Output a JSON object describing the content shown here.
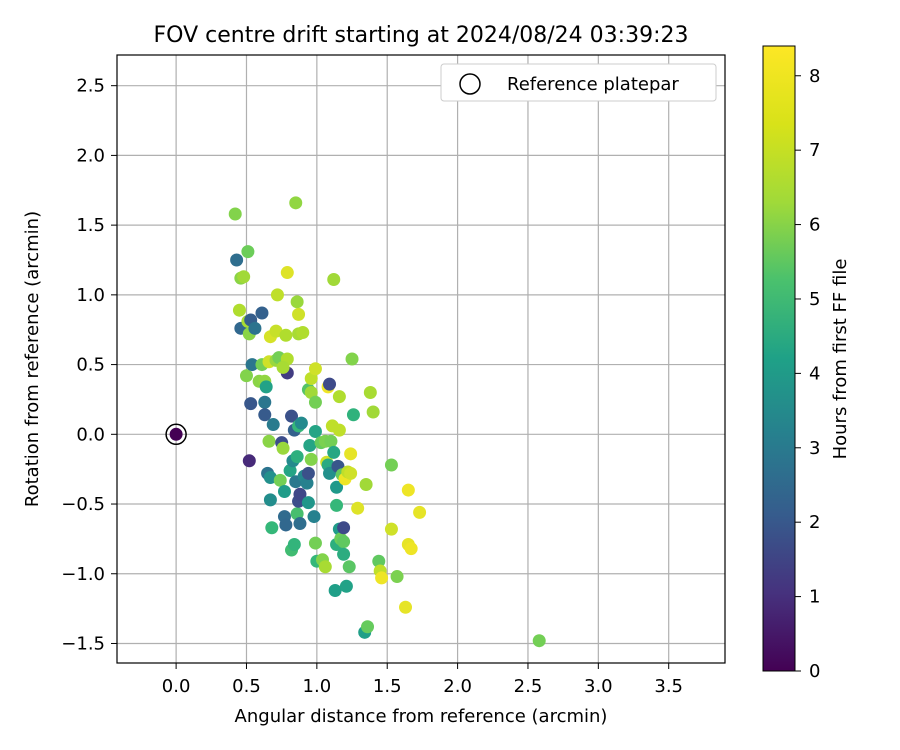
{
  "chart_data": {
    "type": "scatter",
    "title": "FOV centre drift starting at 2024/08/24 03:39:23",
    "xlabel": "Angular distance from reference (arcmin)",
    "ylabel": "Rotation from reference (arcmin)",
    "xlim": [
      -0.42,
      3.9
    ],
    "ylim": [
      -1.64,
      2.72
    ],
    "xticks": [
      "0.0",
      "0.5",
      "1.0",
      "1.5",
      "2.0",
      "2.5",
      "3.0",
      "3.5"
    ],
    "yticks": [
      "-1.5",
      "-1.0",
      "-0.5",
      "0.0",
      "0.5",
      "1.0",
      "1.5",
      "2.0",
      "2.5"
    ],
    "grid": true,
    "legend": {
      "placement": "top-right",
      "entries": [
        "Reference platepar"
      ]
    },
    "colorbar": {
      "label": "Hours from first FF file",
      "range": [
        0,
        8.4
      ],
      "ticks": [
        "0",
        "1",
        "2",
        "3",
        "4",
        "5",
        "6",
        "7",
        "8"
      ],
      "colormap": "viridis"
    },
    "reference_point": {
      "x": 0.0,
      "y": 0.0,
      "hours": 0
    },
    "points": [
      {
        "x": 0.42,
        "y": 1.58,
        "h": 6.8
      },
      {
        "x": 0.45,
        "y": 0.89,
        "h": 7.4
      },
      {
        "x": 0.46,
        "y": 1.12,
        "h": 6.9
      },
      {
        "x": 0.48,
        "y": 1.13,
        "h": 7.2
      },
      {
        "x": 0.51,
        "y": 1.31,
        "h": 6.5
      },
      {
        "x": 0.43,
        "y": 1.25,
        "h": 3.0
      },
      {
        "x": 0.46,
        "y": 0.76,
        "h": 2.8
      },
      {
        "x": 0.51,
        "y": 0.81,
        "h": 7.3
      },
      {
        "x": 0.53,
        "y": 0.82,
        "h": 2.5
      },
      {
        "x": 0.52,
        "y": 0.72,
        "h": 6.9
      },
      {
        "x": 0.61,
        "y": 0.87,
        "h": 2.6
      },
      {
        "x": 0.56,
        "y": 0.76,
        "h": 3.2
      },
      {
        "x": 0.5,
        "y": 0.42,
        "h": 6.8
      },
      {
        "x": 0.54,
        "y": 0.5,
        "h": 3.3
      },
      {
        "x": 0.53,
        "y": 0.22,
        "h": 2.3
      },
      {
        "x": 0.59,
        "y": 0.38,
        "h": 6.9
      },
      {
        "x": 0.61,
        "y": 0.5,
        "h": 6.6
      },
      {
        "x": 0.63,
        "y": 0.38,
        "h": 7.0
      },
      {
        "x": 0.64,
        "y": 0.34,
        "h": 4.8
      },
      {
        "x": 0.63,
        "y": 0.23,
        "h": 3.3
      },
      {
        "x": 0.63,
        "y": 0.14,
        "h": 2.4
      },
      {
        "x": 0.66,
        "y": 0.52,
        "h": 7.8
      },
      {
        "x": 0.67,
        "y": 0.7,
        "h": 7.9
      },
      {
        "x": 0.71,
        "y": 0.53,
        "h": 7.1
      },
      {
        "x": 0.71,
        "y": 0.74,
        "h": 7.7
      },
      {
        "x": 0.72,
        "y": 1.0,
        "h": 7.6
      },
      {
        "x": 0.73,
        "y": 0.55,
        "h": 6.6
      },
      {
        "x": 0.79,
        "y": 1.16,
        "h": 8.0
      },
      {
        "x": 0.78,
        "y": 0.71,
        "h": 7.4
      },
      {
        "x": 0.79,
        "y": 0.54,
        "h": 7.4
      },
      {
        "x": 0.79,
        "y": 0.44,
        "h": 1.5
      },
      {
        "x": 0.76,
        "y": 0.48,
        "h": 7.3
      },
      {
        "x": 0.86,
        "y": 0.95,
        "h": 7.1
      },
      {
        "x": 0.87,
        "y": 0.86,
        "h": 7.8
      },
      {
        "x": 0.87,
        "y": 0.72,
        "h": 7.3
      },
      {
        "x": 0.9,
        "y": 0.73,
        "h": 7.4
      },
      {
        "x": 0.85,
        "y": 1.66,
        "h": 7.0
      },
      {
        "x": 1.12,
        "y": 1.11,
        "h": 7.2
      },
      {
        "x": 0.52,
        "y": -0.19,
        "h": 1.0
      },
      {
        "x": 0.66,
        "y": -0.05,
        "h": 6.9
      },
      {
        "x": 0.69,
        "y": 0.07,
        "h": 3.5
      },
      {
        "x": 0.65,
        "y": -0.28,
        "h": 3.2
      },
      {
        "x": 0.67,
        "y": -0.31,
        "h": 4.2
      },
      {
        "x": 0.67,
        "y": -0.47,
        "h": 4.1
      },
      {
        "x": 0.68,
        "y": -0.67,
        "h": 5.6
      },
      {
        "x": 0.74,
        "y": -0.33,
        "h": 6.6
      },
      {
        "x": 0.75,
        "y": -0.06,
        "h": 2.0
      },
      {
        "x": 0.76,
        "y": -0.1,
        "h": 7.1
      },
      {
        "x": 0.77,
        "y": -0.41,
        "h": 4.6
      },
      {
        "x": 0.77,
        "y": -0.59,
        "h": 2.9
      },
      {
        "x": 0.78,
        "y": -0.65,
        "h": 2.8
      },
      {
        "x": 0.81,
        "y": -0.26,
        "h": 4.9
      },
      {
        "x": 0.82,
        "y": -0.83,
        "h": 5.8
      },
      {
        "x": 0.82,
        "y": 0.13,
        "h": 2.1
      },
      {
        "x": 0.83,
        "y": -0.19,
        "h": 4.0
      },
      {
        "x": 0.84,
        "y": -0.79,
        "h": 5.5
      },
      {
        "x": 0.84,
        "y": 0.03,
        "h": 2.6
      },
      {
        "x": 0.85,
        "y": -0.34,
        "h": 3.4
      },
      {
        "x": 0.86,
        "y": -0.16,
        "h": 5.3
      },
      {
        "x": 0.86,
        "y": -0.57,
        "h": 5.9
      },
      {
        "x": 0.87,
        "y": -0.48,
        "h": 2.0
      },
      {
        "x": 0.87,
        "y": 0.06,
        "h": 5.6
      },
      {
        "x": 0.88,
        "y": -0.64,
        "h": 3.0
      },
      {
        "x": 0.88,
        "y": -0.43,
        "h": 1.8
      },
      {
        "x": 0.89,
        "y": 0.08,
        "h": 4.0
      },
      {
        "x": 0.91,
        "y": -0.3,
        "h": 3.9
      },
      {
        "x": 0.93,
        "y": -0.35,
        "h": 3.7
      },
      {
        "x": 0.94,
        "y": -0.49,
        "h": 4.4
      },
      {
        "x": 0.94,
        "y": -0.28,
        "h": 2.1
      },
      {
        "x": 0.94,
        "y": 0.32,
        "h": 6.1
      },
      {
        "x": 0.95,
        "y": -0.08,
        "h": 4.9
      },
      {
        "x": 0.96,
        "y": -0.18,
        "h": 6.8
      },
      {
        "x": 0.96,
        "y": 0.3,
        "h": 7.2
      },
      {
        "x": 0.98,
        "y": -0.59,
        "h": 3.7
      },
      {
        "x": 0.99,
        "y": 0.23,
        "h": 6.6
      },
      {
        "x": 0.99,
        "y": 0.02,
        "h": 4.9
      },
      {
        "x": 0.99,
        "y": -0.78,
        "h": 6.6
      },
      {
        "x": 1.0,
        "y": -0.91,
        "h": 5.6
      },
      {
        "x": 0.96,
        "y": 0.4,
        "h": 7.6
      },
      {
        "x": 0.99,
        "y": 0.47,
        "h": 7.8
      },
      {
        "x": 1.03,
        "y": -0.06,
        "h": 6.4
      },
      {
        "x": 1.04,
        "y": -0.9,
        "h": 6.8
      },
      {
        "x": 1.06,
        "y": -0.95,
        "h": 7.3
      },
      {
        "x": 1.06,
        "y": -0.05,
        "h": 6.7
      },
      {
        "x": 1.07,
        "y": -0.2,
        "h": 7.8
      },
      {
        "x": 1.08,
        "y": -0.22,
        "h": 5.1
      },
      {
        "x": 1.08,
        "y": 0.34,
        "h": 8.2
      },
      {
        "x": 1.09,
        "y": -0.28,
        "h": 4.2
      },
      {
        "x": 1.09,
        "y": 0.36,
        "h": 1.9
      },
      {
        "x": 1.1,
        "y": -0.05,
        "h": 6.6
      },
      {
        "x": 1.11,
        "y": 0.06,
        "h": 7.6
      },
      {
        "x": 1.12,
        "y": -0.13,
        "h": 5.0
      },
      {
        "x": 1.13,
        "y": -1.12,
        "h": 4.7
      },
      {
        "x": 1.14,
        "y": -0.38,
        "h": 4.5
      },
      {
        "x": 1.14,
        "y": -0.51,
        "h": 5.6
      },
      {
        "x": 1.14,
        "y": -0.79,
        "h": 5.3
      },
      {
        "x": 1.15,
        "y": -0.23,
        "h": 2.3
      },
      {
        "x": 1.16,
        "y": 0.03,
        "h": 7.6
      },
      {
        "x": 1.16,
        "y": -0.68,
        "h": 4.6
      },
      {
        "x": 1.16,
        "y": 0.27,
        "h": 7.4
      },
      {
        "x": 1.17,
        "y": -0.75,
        "h": 6.5
      },
      {
        "x": 1.18,
        "y": -0.29,
        "h": 6.4
      },
      {
        "x": 1.19,
        "y": -0.67,
        "h": 1.9
      },
      {
        "x": 1.19,
        "y": -0.77,
        "h": 6.3
      },
      {
        "x": 1.19,
        "y": -0.86,
        "h": 5.2
      },
      {
        "x": 1.2,
        "y": -0.32,
        "h": 8.2
      },
      {
        "x": 1.21,
        "y": -1.09,
        "h": 4.8
      },
      {
        "x": 1.22,
        "y": -0.27,
        "h": 7.6
      },
      {
        "x": 1.23,
        "y": -0.95,
        "h": 6.2
      },
      {
        "x": 1.24,
        "y": -0.14,
        "h": 8.1
      },
      {
        "x": 1.24,
        "y": -0.28,
        "h": 7.8
      },
      {
        "x": 1.25,
        "y": 0.54,
        "h": 6.8
      },
      {
        "x": 1.26,
        "y": 0.14,
        "h": 5.4
      },
      {
        "x": 1.29,
        "y": -0.53,
        "h": 8.0
      },
      {
        "x": 1.34,
        "y": -1.42,
        "h": 4.7
      },
      {
        "x": 1.35,
        "y": -0.36,
        "h": 7.2
      },
      {
        "x": 1.36,
        "y": -1.38,
        "h": 6.4
      },
      {
        "x": 1.38,
        "y": 0.3,
        "h": 7.3
      },
      {
        "x": 1.4,
        "y": 0.16,
        "h": 7.2
      },
      {
        "x": 1.44,
        "y": -0.91,
        "h": 6.3
      },
      {
        "x": 1.45,
        "y": -0.98,
        "h": 7.6
      },
      {
        "x": 1.46,
        "y": -1.03,
        "h": 8.2
      },
      {
        "x": 1.53,
        "y": -0.22,
        "h": 6.6
      },
      {
        "x": 1.53,
        "y": -0.68,
        "h": 7.8
      },
      {
        "x": 1.57,
        "y": -1.02,
        "h": 6.7
      },
      {
        "x": 1.63,
        "y": -1.24,
        "h": 8.1
      },
      {
        "x": 1.65,
        "y": -0.4,
        "h": 8.2
      },
      {
        "x": 1.65,
        "y": -0.79,
        "h": 8.1
      },
      {
        "x": 1.67,
        "y": -0.82,
        "h": 8.2
      },
      {
        "x": 1.73,
        "y": -0.56,
        "h": 8.1
      },
      {
        "x": 2.58,
        "y": -1.48,
        "h": 6.6
      }
    ]
  }
}
